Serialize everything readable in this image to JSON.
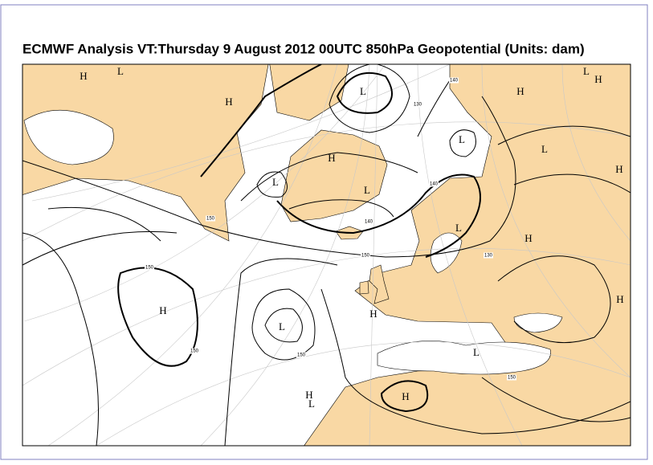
{
  "title": "ECMWF  Analysis VT:Thursday 9 August 2012 00UTC 850hPa Geopotential (Units: dam)",
  "centers": [
    "H",
    "L",
    "H",
    "L",
    "L",
    "H",
    "L",
    "L",
    "H",
    "L",
    "H",
    "L",
    "H",
    "L",
    "H",
    "H",
    "L",
    "H",
    "H",
    "H",
    "L",
    "H",
    "L"
  ],
  "contour_labels": [
    "150",
    "150",
    "150",
    "140",
    "150",
    "150",
    "140",
    "130",
    "140",
    "130",
    "150"
  ]
}
